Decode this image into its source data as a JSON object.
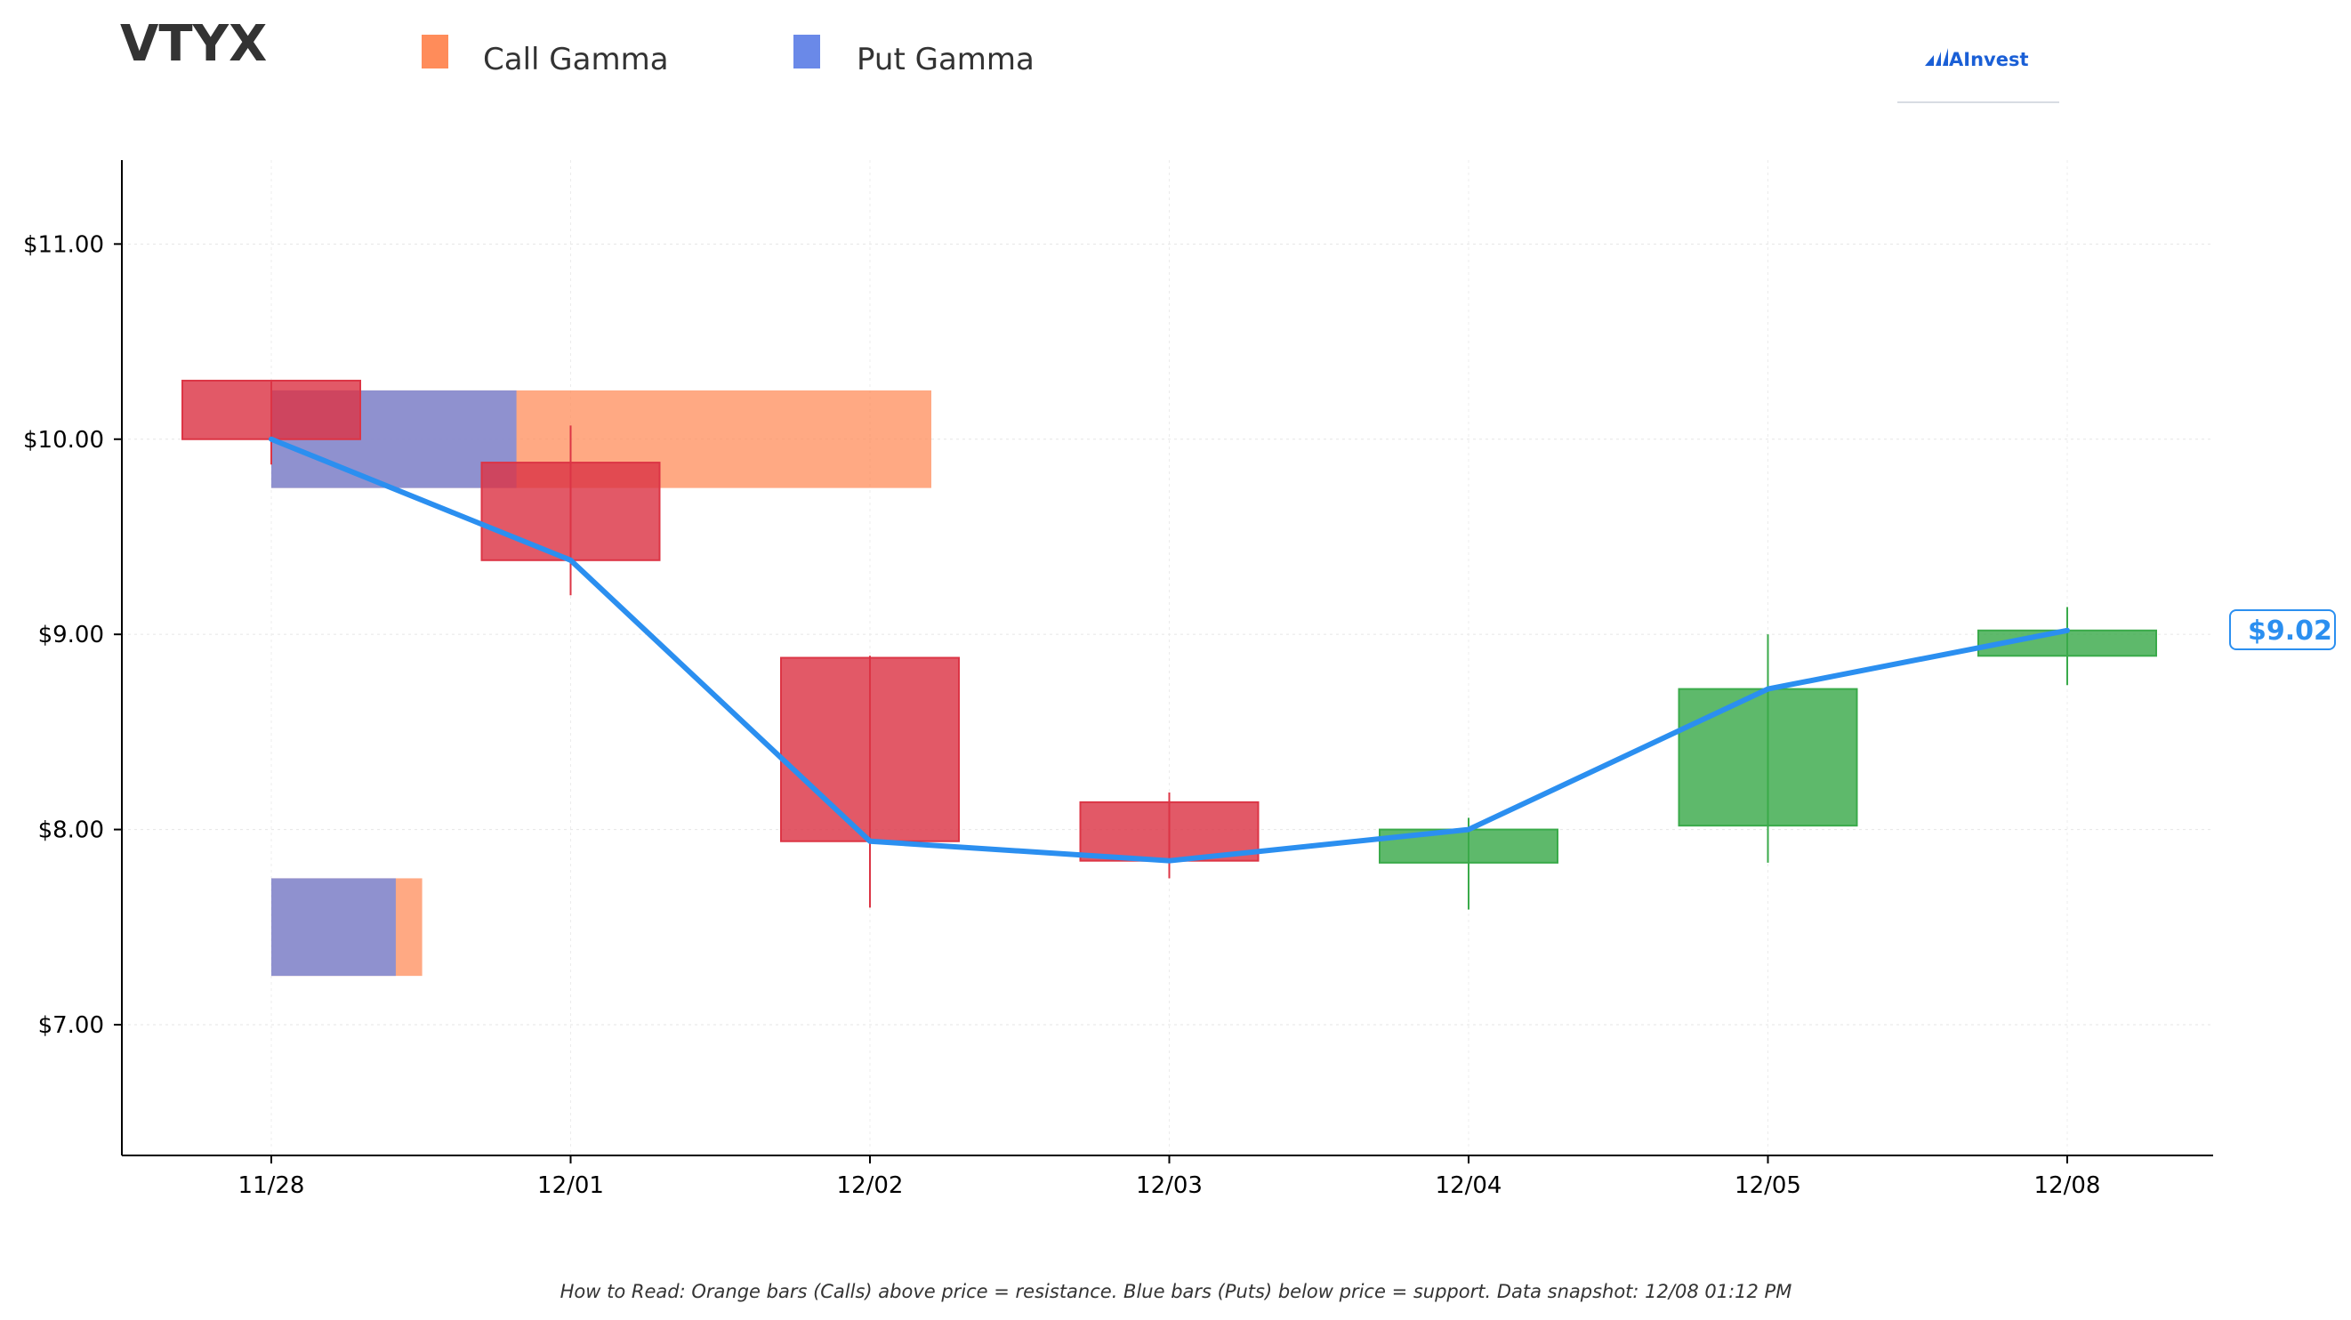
{
  "title": "VTYX",
  "legend": [
    {
      "label": "Call Gamma",
      "color": "#ff8c5a"
    },
    {
      "label": "Put Gamma",
      "color": "#6a89e8"
    }
  ],
  "brand": {
    "name": "AInvest",
    "color": "#1a5fd6"
  },
  "footnote": "How to Read: Orange bars (Calls) above price = resistance. Blue bars (Puts) below price = support. Data snapshot: 12/08 01:12 PM",
  "price_tag": "$9.02",
  "colors": {
    "up": "#3aaa4a",
    "down": "#dc3545",
    "line": "#2b8ff0",
    "call": "#ff8c5a",
    "put": "#6a89e8"
  },
  "chart_data": {
    "type": "candlestick",
    "categories": [
      "11/28",
      "12/01",
      "12/02",
      "12/03",
      "12/04",
      "12/05",
      "12/08"
    ],
    "y_ticks": [
      {
        "value": 7.0,
        "label": "$7.00"
      },
      {
        "value": 8.0,
        "label": "$8.00"
      },
      {
        "value": 9.0,
        "label": "$9.00"
      },
      {
        "value": 10.0,
        "label": "$10.00"
      },
      {
        "value": 11.0,
        "label": "$11.00"
      }
    ],
    "ylim": [
      6.33,
      11.43
    ],
    "grid": true,
    "candles": [
      {
        "date": "11/28",
        "open": 10.3,
        "close": 10.0,
        "high": 10.3,
        "low": 9.87
      },
      {
        "date": "12/01",
        "open": 9.88,
        "close": 9.38,
        "high": 10.07,
        "low": 9.2
      },
      {
        "date": "12/02",
        "open": 8.88,
        "close": 7.94,
        "high": 8.89,
        "low": 7.6
      },
      {
        "date": "12/03",
        "open": 8.14,
        "close": 7.84,
        "high": 8.19,
        "low": 7.75
      },
      {
        "date": "12/04",
        "open": 7.83,
        "close": 8.0,
        "high": 8.06,
        "low": 7.59
      },
      {
        "date": "12/05",
        "open": 8.02,
        "close": 8.72,
        "high": 9.0,
        "low": 7.83
      },
      {
        "date": "12/08",
        "open": 8.89,
        "close": 9.02,
        "high": 9.14,
        "low": 8.74
      }
    ],
    "price_line": [
      10.0,
      9.38,
      7.94,
      7.84,
      8.0,
      8.72,
      9.02
    ],
    "gamma_bars": [
      {
        "strike_low": 9.75,
        "strike_high": 10.25,
        "call": 3.5,
        "put": 1.3
      },
      {
        "strike_low": 7.25,
        "strike_high": 7.75,
        "call": 0.8,
        "put": 0.66
      }
    ]
  }
}
